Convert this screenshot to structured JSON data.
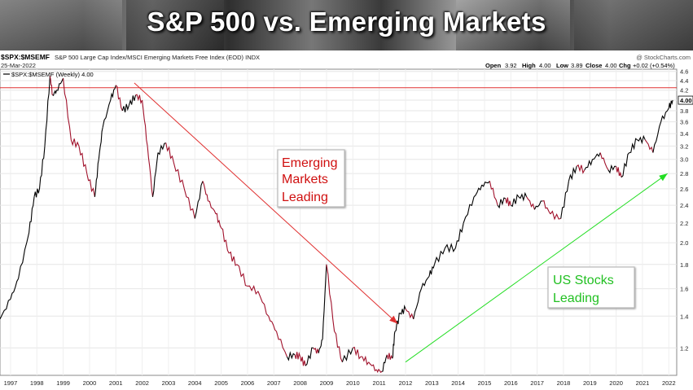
{
  "banner": {
    "title": "S&P 500 vs. Emerging Markets"
  },
  "header": {
    "symbol": "$SPX:$MSEMF",
    "description": "S&P 500 Large Cap Index/MSCI Emerging Markets Free Index (EOD) INDX",
    "date": "25-Mar-2022",
    "watermark": "@ StockCharts.com",
    "open_label": "Open",
    "open": "3.92",
    "high_label": "High",
    "high": "4.00",
    "low_label": "Low",
    "low": "3.89",
    "close_label": "Close",
    "close": "4.00",
    "chg_label": "Chg",
    "chg": "+0.02 (+0.54%)"
  },
  "legend": {
    "label": "$SPX:$MSEMF (Weekly) 4.00"
  },
  "last_value": "4.00",
  "annotations": {
    "emerging": [
      "Emerging",
      "Markets",
      "Leading"
    ],
    "us": [
      "US Stocks",
      "Leading"
    ]
  },
  "colors": {
    "price_up": "#000000",
    "price_down": "#a0102a",
    "resistance": "#e03030",
    "arrow_down": "#e03030",
    "arrow_up": "#22dd22",
    "emerging_text": "#d01010",
    "us_text": "#22c022"
  },
  "chart_data": {
    "type": "line",
    "series": [
      {
        "name": "$SPX:$MSEMF (Weekly)",
        "x": [
          1996.6,
          1997.0,
          1997.3,
          1997.7,
          1997.9,
          1998.1,
          1998.3,
          1998.5,
          1998.6,
          1998.75,
          1999.0,
          1999.3,
          1999.6,
          1999.9,
          2000.2,
          2000.35,
          2000.5,
          2000.8,
          2001.0,
          2001.25,
          2001.5,
          2001.75,
          2002.0,
          2002.2,
          2002.4,
          2002.6,
          2002.9,
          2003.2,
          2003.6,
          2004.0,
          2004.3,
          2004.5,
          2004.8,
          2005.0,
          2005.3,
          2005.6,
          2006.0,
          2006.4,
          2006.8,
          2007.1,
          2007.5,
          2007.8,
          2008.0,
          2008.2,
          2008.5,
          2008.7,
          2008.85,
          2009.0,
          2009.3,
          2009.6,
          2010.0,
          2010.3,
          2010.6,
          2010.9,
          2011.1,
          2011.3,
          2011.5,
          2011.6,
          2011.8,
          2012.0,
          2012.3,
          2012.6,
          2012.9,
          2013.1,
          2013.5,
          2013.9,
          2014.2,
          2014.6,
          2014.9,
          2015.2,
          2015.5,
          2015.8,
          2016.0,
          2016.3,
          2016.6,
          2016.9,
          2017.2,
          2017.5,
          2017.9,
          2018.2,
          2018.5,
          2018.8,
          2019.1,
          2019.4,
          2019.7,
          2020.0,
          2020.2,
          2020.5,
          2020.8,
          2021.1,
          2021.4,
          2021.7,
          2022.0,
          2022.15
        ],
        "y": [
          1.38,
          1.52,
          1.68,
          2.1,
          2.5,
          2.6,
          3.2,
          4.5,
          4.1,
          4.2,
          4.45,
          3.3,
          3.2,
          2.8,
          2.5,
          3.0,
          3.5,
          4.0,
          4.3,
          3.8,
          3.9,
          4.1,
          4.0,
          3.2,
          2.5,
          3.1,
          3.25,
          2.95,
          2.6,
          2.25,
          2.7,
          2.45,
          2.3,
          2.15,
          1.9,
          1.8,
          1.62,
          1.58,
          1.4,
          1.3,
          1.15,
          1.16,
          1.15,
          1.1,
          1.2,
          1.17,
          1.25,
          1.8,
          1.3,
          1.12,
          1.2,
          1.15,
          1.12,
          1.08,
          1.07,
          1.16,
          1.14,
          1.3,
          1.42,
          1.45,
          1.38,
          1.6,
          1.7,
          1.8,
          1.95,
          1.95,
          2.2,
          2.5,
          2.65,
          2.7,
          2.4,
          2.48,
          2.4,
          2.5,
          2.5,
          2.35,
          2.45,
          2.3,
          2.25,
          2.7,
          2.9,
          2.85,
          3.0,
          3.1,
          2.85,
          2.9,
          2.75,
          3.1,
          3.3,
          3.3,
          3.1,
          3.6,
          3.85,
          4.0
        ]
      }
    ],
    "x_ticks": [
      "1997",
      "1998",
      "1999",
      "2000",
      "2001",
      "2002",
      "2003",
      "2004",
      "2005",
      "2006",
      "2007",
      "2008",
      "2009",
      "2010",
      "2011",
      "2012",
      "2013",
      "2014",
      "2015",
      "2016",
      "2017",
      "2018",
      "2019",
      "2020",
      "2021",
      "2022"
    ],
    "y_ticks": [
      1.2,
      1.4,
      1.6,
      1.8,
      2.0,
      2.2,
      2.4,
      2.6,
      2.8,
      3.0,
      3.2,
      3.4,
      3.6,
      3.8,
      4.0,
      4.2,
      4.4,
      4.6
    ],
    "ylim": [
      1.05,
      4.65
    ],
    "xlim": [
      1996.6,
      2022.3
    ],
    "y_scale": "log",
    "horizontal_line": 4.25,
    "trend_lines": [
      {
        "from": [
          2001.7,
          4.35
        ],
        "to": [
          2011.7,
          1.35
        ],
        "color": "red"
      },
      {
        "from": [
          2012.0,
          1.12
        ],
        "to": [
          2021.95,
          2.8
        ],
        "color": "green"
      }
    ],
    "grid": true
  }
}
